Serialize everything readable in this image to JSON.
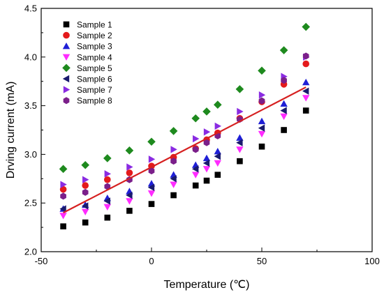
{
  "chart_data": {
    "type": "scatter",
    "title": "",
    "xlabel": "Temperature (℃)",
    "ylabel": "Drving current (mA)",
    "xlim": [
      -50,
      100
    ],
    "ylim": [
      2.0,
      4.5
    ],
    "xticks": [
      "-50",
      "0",
      "50",
      "100"
    ],
    "yticks": [
      "2.0",
      "2.5",
      "3.0",
      "3.5",
      "4.0",
      "4.5"
    ],
    "grid": false,
    "legend_position": "top-left",
    "x": [
      -40,
      -30,
      -20,
      -10,
      0,
      10,
      20,
      25,
      30,
      40,
      50,
      60,
      70
    ],
    "series": [
      {
        "name": "Sample 1",
        "marker": "square",
        "color": "#000000",
        "values": [
          2.26,
          2.3,
          2.35,
          2.42,
          2.49,
          2.58,
          2.68,
          2.73,
          2.79,
          2.93,
          3.08,
          3.25,
          3.45
        ]
      },
      {
        "name": "Sample 2",
        "marker": "circle",
        "color": "#e41a1c",
        "values": [
          2.64,
          2.68,
          2.74,
          2.81,
          2.88,
          2.97,
          3.06,
          3.15,
          3.22,
          3.37,
          3.54,
          3.72,
          3.93
        ]
      },
      {
        "name": "Sample 3",
        "marker": "triangle-up",
        "color": "#1f1fd6",
        "values": [
          2.44,
          2.48,
          2.55,
          2.62,
          2.7,
          2.79,
          2.89,
          2.96,
          3.03,
          3.17,
          3.34,
          3.52,
          3.74
        ]
      },
      {
        "name": "Sample 4",
        "marker": "triangle-down",
        "color": "#ff2cff",
        "values": [
          2.37,
          2.41,
          2.46,
          2.52,
          2.6,
          2.69,
          2.79,
          2.85,
          2.91,
          3.05,
          3.21,
          3.39,
          3.58
        ]
      },
      {
        "name": "Sample 5",
        "marker": "diamond",
        "color": "#1e8a1e",
        "values": [
          2.85,
          2.89,
          2.96,
          3.04,
          3.13,
          3.24,
          3.37,
          3.44,
          3.51,
          3.67,
          3.86,
          4.07,
          4.31
        ]
      },
      {
        "name": "Sample 6",
        "marker": "triangle-left",
        "color": "#1a1a6e",
        "values": [
          2.44,
          2.47,
          2.52,
          2.58,
          2.66,
          2.75,
          2.85,
          2.91,
          2.98,
          3.12,
          3.27,
          3.45,
          3.65
        ]
      },
      {
        "name": "Sample 7",
        "marker": "triangle-right",
        "color": "#8a2be2",
        "values": [
          2.69,
          2.74,
          2.8,
          2.87,
          2.95,
          3.05,
          3.16,
          3.23,
          3.29,
          3.44,
          3.61,
          3.8,
          4.0
        ]
      },
      {
        "name": "Sample 8",
        "marker": "hexagon",
        "color": "#7b1f8a",
        "values": [
          2.57,
          2.61,
          2.67,
          2.74,
          2.83,
          2.93,
          3.05,
          3.12,
          3.19,
          3.36,
          3.55,
          3.76,
          4.01
        ]
      }
    ],
    "fit_line": {
      "color": "#d62020",
      "x": [
        -40,
        70
      ],
      "y": [
        2.4,
        3.69
      ]
    }
  }
}
